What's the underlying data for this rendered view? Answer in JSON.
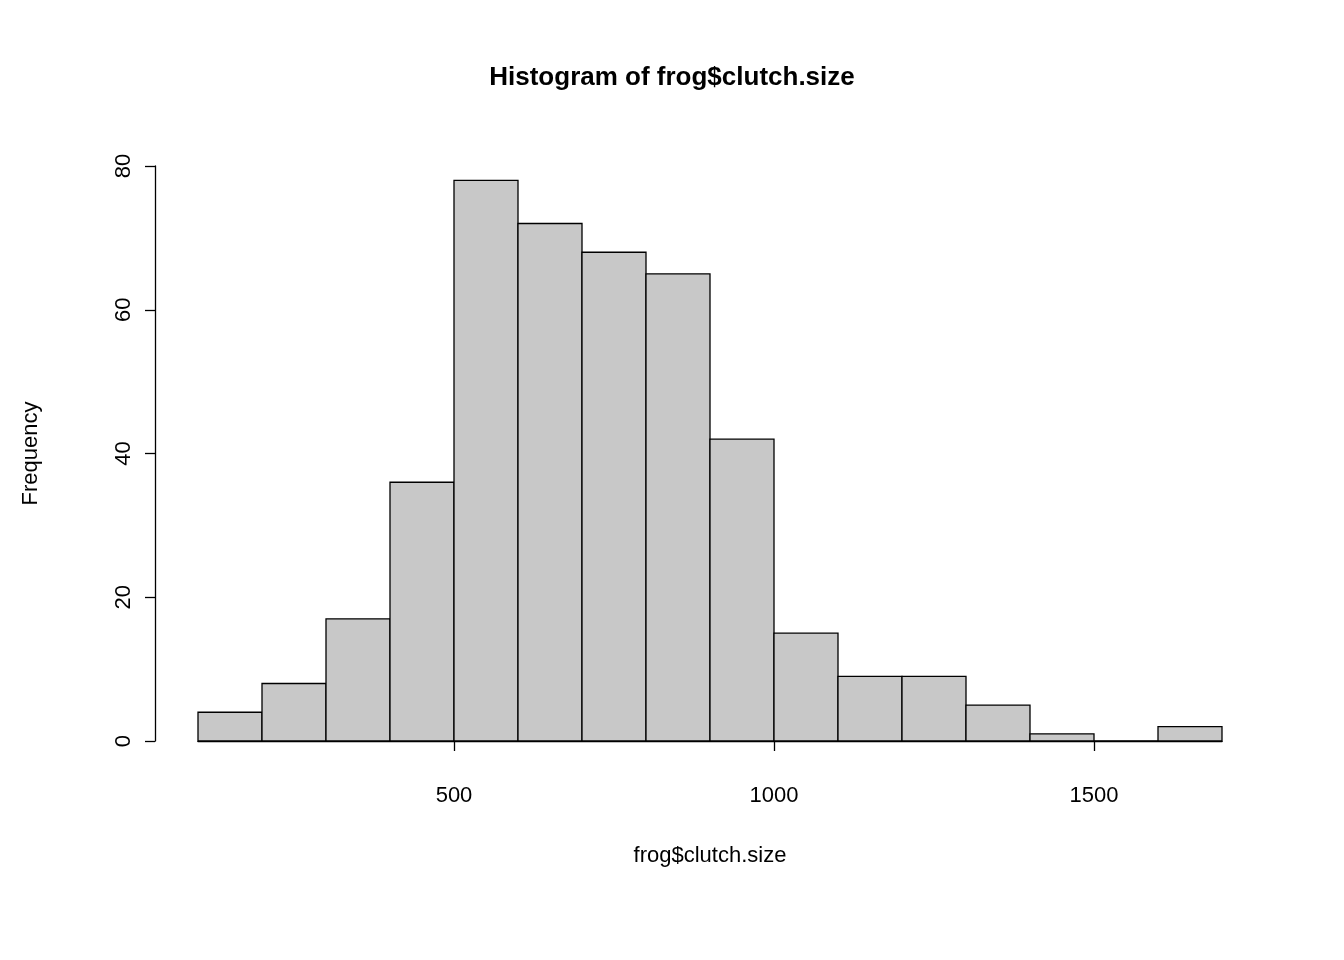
{
  "chart_data": {
    "type": "histogram",
    "title": "Histogram of frog$clutch.size",
    "xlabel": "frog$clutch.size",
    "ylabel": "Frequency",
    "bins": [
      100,
      200,
      300,
      400,
      500,
      600,
      700,
      800,
      900,
      1000,
      1100,
      1200,
      1300,
      1400,
      1500,
      1600,
      1700
    ],
    "values": [
      4,
      8,
      17,
      36,
      78,
      72,
      68,
      65,
      42,
      15,
      9,
      9,
      5,
      1,
      0,
      2
    ],
    "color": "#c8c8c8",
    "xlim": [
      100,
      1700
    ],
    "xticks": [
      500,
      1000,
      1500
    ],
    "ylim": [
      0,
      80
    ],
    "yticks": [
      0,
      20,
      40,
      60,
      80
    ],
    "grid": false,
    "legend": false
  }
}
